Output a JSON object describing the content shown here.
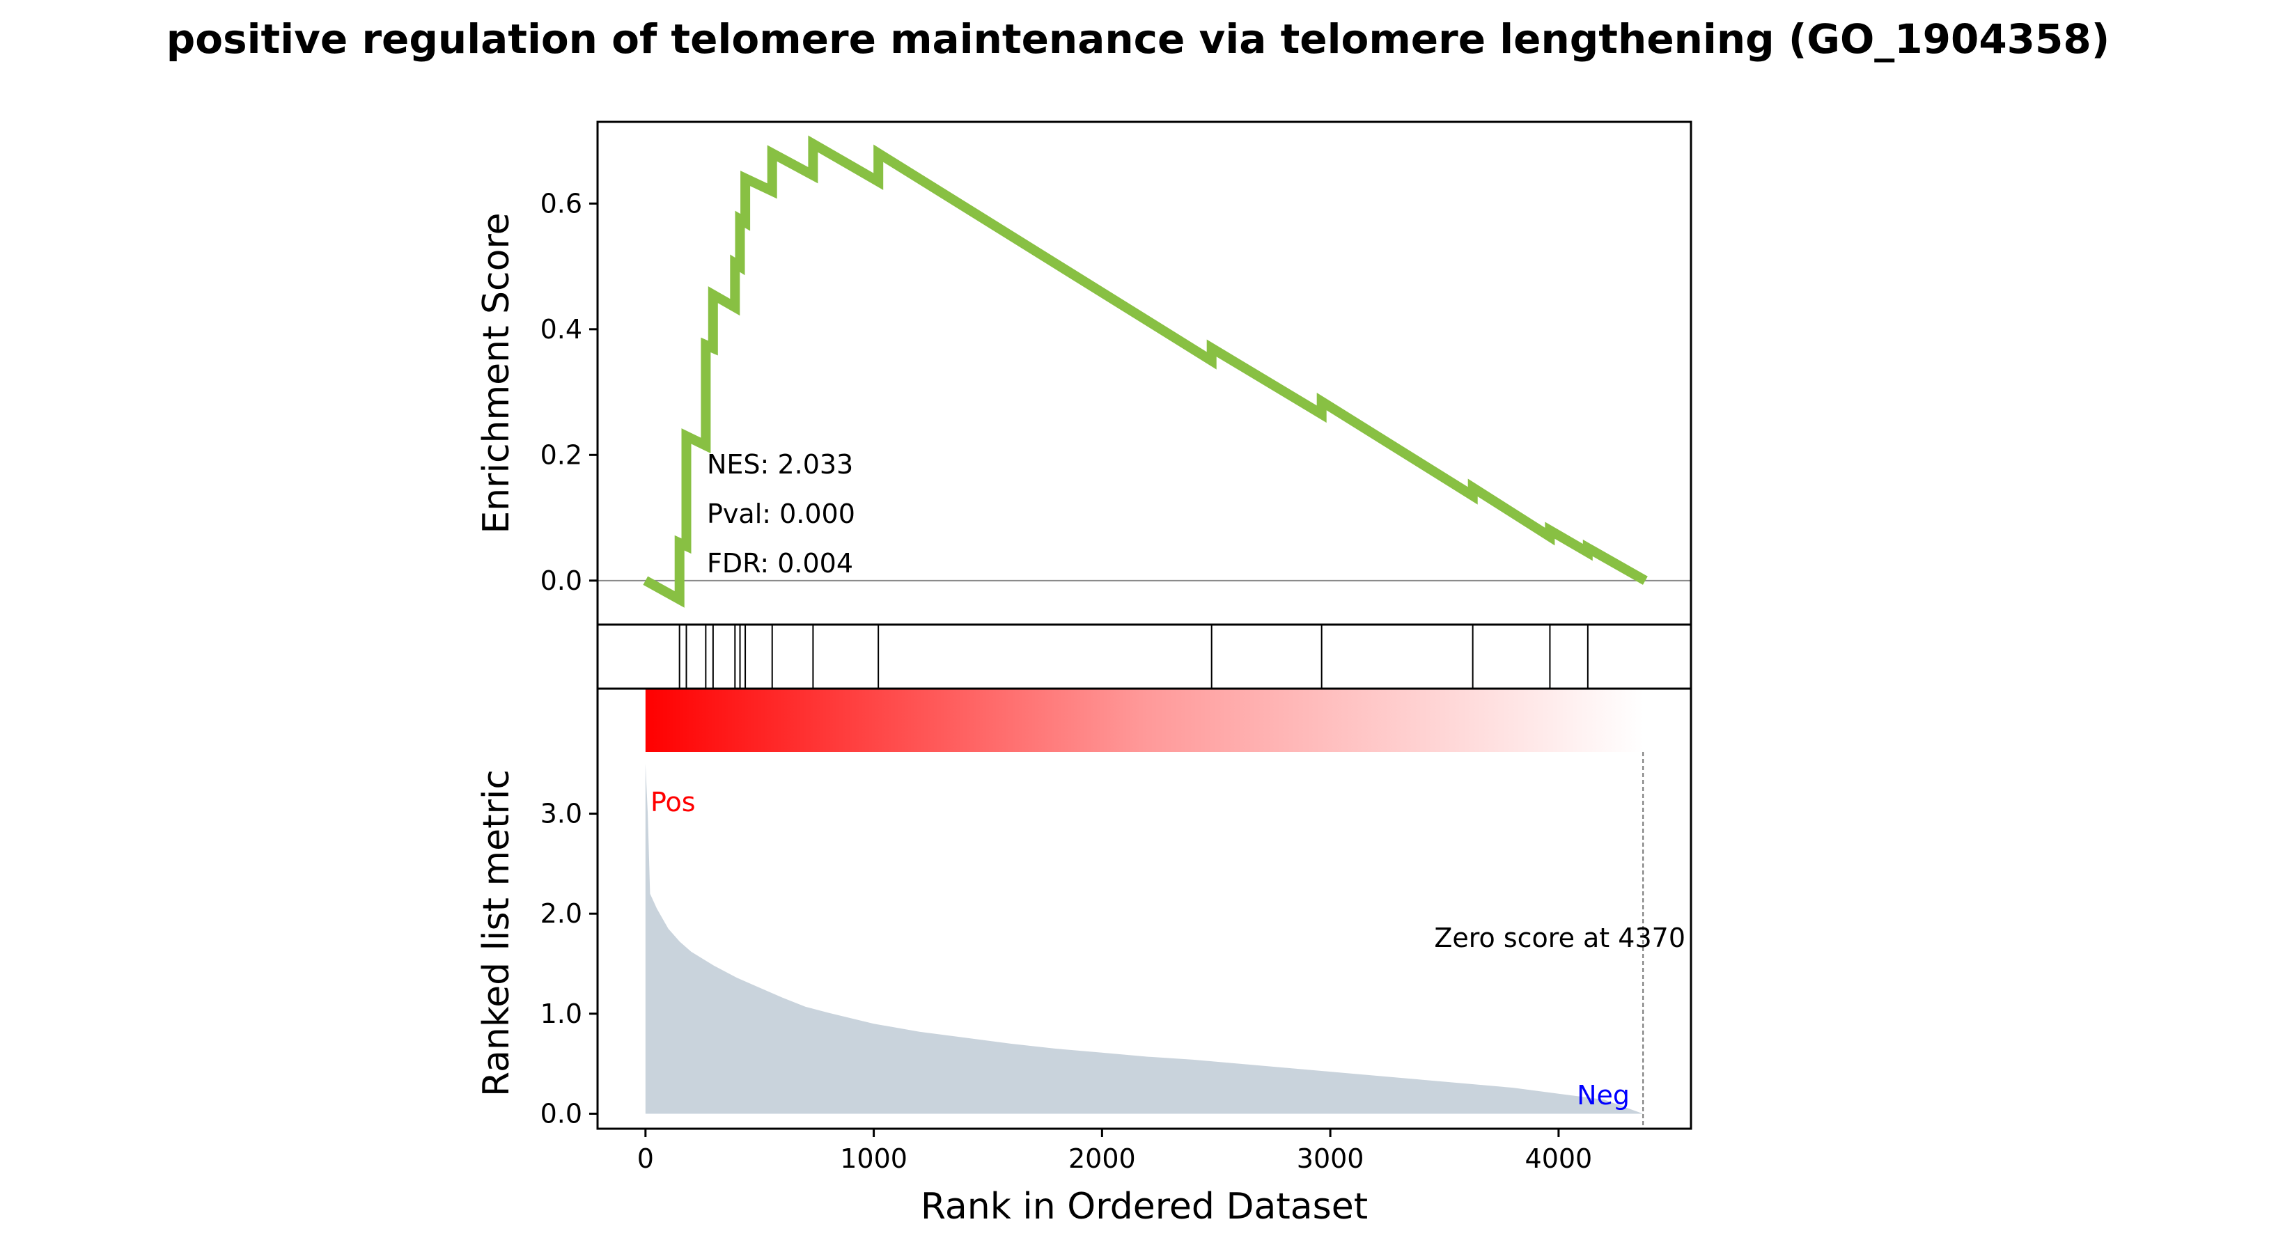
{
  "chart_data": {
    "type": "line",
    "title": "positive regulation of telomere maintenance via telomere lengthening (GO_1904358)",
    "colors": {
      "es_line": "#88c043",
      "metric_fill": "#c9d3dc",
      "pos_label": "#ff0000",
      "neg_label": "#0000ff",
      "heatmap_start": "#ff0000",
      "heatmap_end": "#ffffff"
    },
    "xlabel": "Rank in Ordered Dataset",
    "xlim": [
      -210,
      4580
    ],
    "x_ticks": [
      0,
      1000,
      2000,
      3000,
      4000
    ],
    "enrichment": {
      "ylabel": "Enrichment Score",
      "ylim": [
        -0.07,
        0.73
      ],
      "y_ticks": [
        0.0,
        0.2,
        0.4,
        0.6
      ],
      "y_tick_labels": [
        "0.0",
        "0.2",
        "0.4",
        "0.6"
      ],
      "points": [
        [
          0,
          0.0
        ],
        [
          149,
          -0.03
        ],
        [
          149,
          0.06
        ],
        [
          179,
          0.055
        ],
        [
          179,
          0.23
        ],
        [
          264,
          0.215
        ],
        [
          264,
          0.375
        ],
        [
          296,
          0.37
        ],
        [
          296,
          0.455
        ],
        [
          392,
          0.435
        ],
        [
          392,
          0.505
        ],
        [
          414,
          0.5
        ],
        [
          414,
          0.575
        ],
        [
          437,
          0.57
        ],
        [
          437,
          0.64
        ],
        [
          555,
          0.62
        ],
        [
          555,
          0.68
        ],
        [
          734,
          0.645
        ],
        [
          734,
          0.695
        ],
        [
          1020,
          0.635
        ],
        [
          1020,
          0.68
        ],
        [
          2480,
          0.35
        ],
        [
          2480,
          0.37
        ],
        [
          2962,
          0.265
        ],
        [
          2962,
          0.285
        ],
        [
          3624,
          0.135
        ],
        [
          3624,
          0.148
        ],
        [
          3962,
          0.07
        ],
        [
          3962,
          0.08
        ],
        [
          4128,
          0.045
        ],
        [
          4128,
          0.052
        ],
        [
          4380,
          0.0
        ]
      ],
      "annotations": [
        "NES: 2.033",
        "Pval: 0.000",
        "FDR: 0.004"
      ]
    },
    "hits": [
      149,
      179,
      264,
      296,
      392,
      414,
      437,
      555,
      734,
      1020,
      2480,
      2962,
      3624,
      3962,
      4128
    ],
    "ranked_metric": {
      "ylabel": "Ranked list metric",
      "ylim": [
        -0.15,
        4.25
      ],
      "y_ticks": [
        0.0,
        1.0,
        2.0,
        3.0
      ],
      "y_tick_labels": [
        "0.0",
        "1.0",
        "2.0",
        "3.0"
      ],
      "points": [
        [
          0,
          3.5
        ],
        [
          10,
          3.0
        ],
        [
          20,
          2.2
        ],
        [
          50,
          2.05
        ],
        [
          100,
          1.85
        ],
        [
          150,
          1.72
        ],
        [
          200,
          1.62
        ],
        [
          300,
          1.48
        ],
        [
          400,
          1.36
        ],
        [
          500,
          1.26
        ],
        [
          600,
          1.16
        ],
        [
          700,
          1.07
        ],
        [
          800,
          1.01
        ],
        [
          1000,
          0.9
        ],
        [
          1200,
          0.82
        ],
        [
          1400,
          0.76
        ],
        [
          1600,
          0.7
        ],
        [
          1800,
          0.65
        ],
        [
          2000,
          0.61
        ],
        [
          2200,
          0.57
        ],
        [
          2400,
          0.54
        ],
        [
          2600,
          0.5
        ],
        [
          2800,
          0.46
        ],
        [
          3000,
          0.42
        ],
        [
          3200,
          0.38
        ],
        [
          3400,
          0.34
        ],
        [
          3600,
          0.3
        ],
        [
          3800,
          0.26
        ],
        [
          4000,
          0.2
        ],
        [
          4200,
          0.14
        ],
        [
          4370,
          0.0
        ]
      ],
      "pos_label": "Pos",
      "neg_label": "Neg",
      "zero_score_label": "Zero score at 4370",
      "zero_score_rank": 4370
    }
  }
}
